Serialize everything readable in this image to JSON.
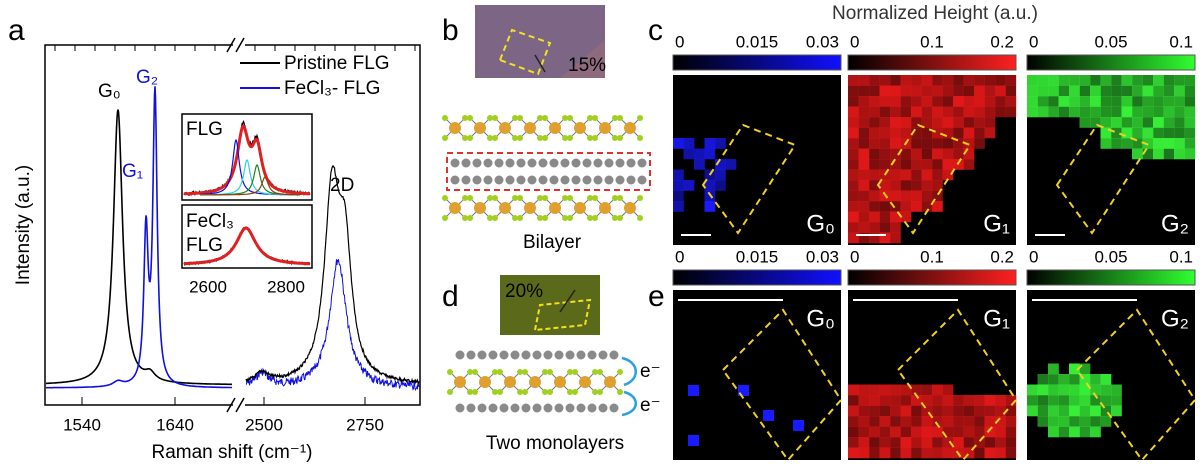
{
  "panel_a": {
    "label": "a",
    "legend": [
      "Pristine FLG",
      "FeCl₃- FLG"
    ],
    "peaks": [
      "G₀",
      "G₂",
      "G₁",
      "2D"
    ],
    "x_ticks": [
      "1540",
      "1640",
      "2500",
      "2750"
    ],
    "x_label": "Raman shift (cm⁻¹)",
    "y_label": "Intensity (a.u.)",
    "inset": {
      "top_label": "FLG",
      "bottom_label": [
        "FeCl₃",
        "FLG"
      ],
      "x_ticks": [
        "2600",
        "2800"
      ]
    }
  },
  "panel_b": {
    "label": "b",
    "strain": "15%",
    "caption": "Bilayer"
  },
  "panel_c": {
    "label": "c",
    "title": "Normalized Height (a.u.)",
    "colorbars": [
      [
        "0",
        "0.015",
        "0.03"
      ],
      [
        "0",
        "0.1",
        "0.2"
      ],
      [
        "0",
        "0.05",
        "0.1"
      ]
    ],
    "maps": [
      "G₀",
      "G₁",
      "G₂"
    ]
  },
  "panel_d": {
    "label": "d",
    "strain": "20%",
    "charges": [
      "e⁻",
      "e⁻"
    ],
    "caption": "Two monolayers"
  },
  "panel_e": {
    "label": "e",
    "colorbars": [
      [
        "0",
        "0.015",
        "0.03"
      ],
      [
        "0",
        "0.1",
        "0.2"
      ],
      [
        "0",
        "0.05",
        "0.1"
      ]
    ],
    "maps": [
      "G₀",
      "G₁",
      "G₂"
    ]
  }
}
